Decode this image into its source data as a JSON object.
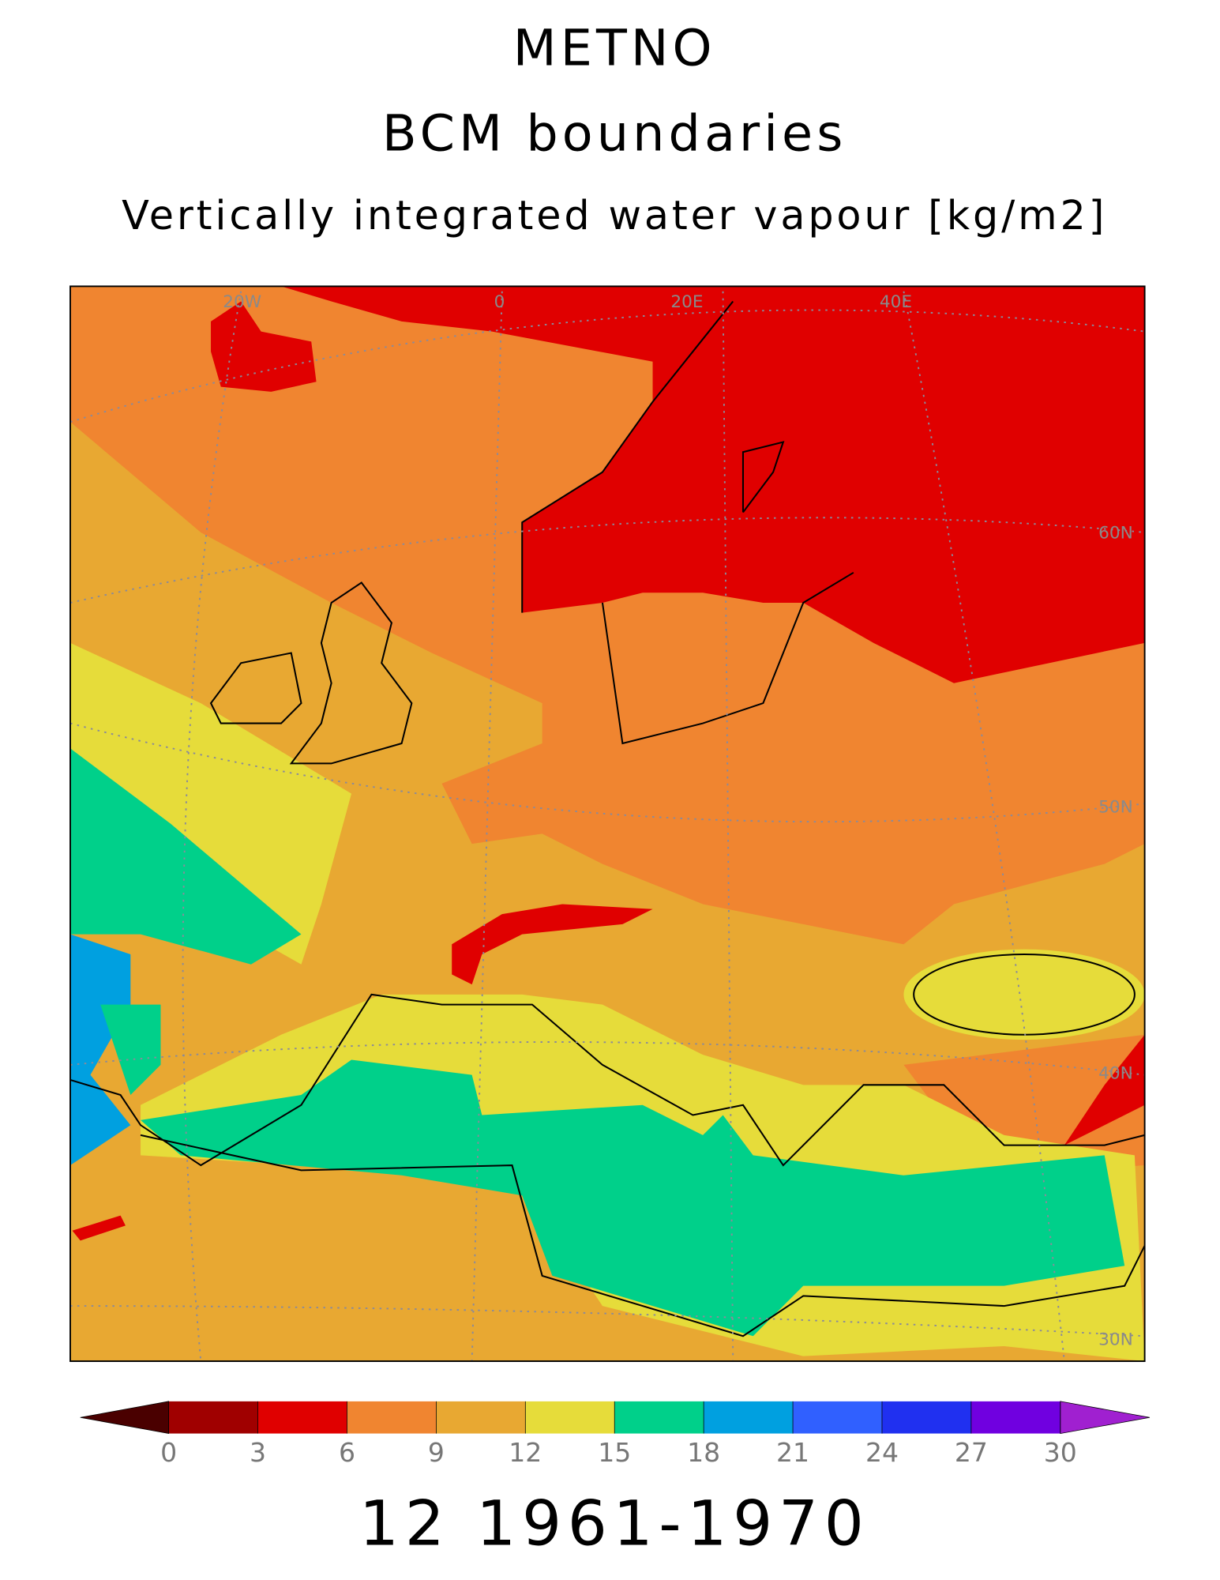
{
  "title": [
    "METNO",
    "BCM boundaries",
    "Vertically integrated water vapour [kg/m2]"
  ],
  "map": {
    "lon_labels": [
      "20W",
      "0",
      "20E",
      "40E"
    ],
    "lat_labels": [
      "60N",
      "50N",
      "40N",
      "30N"
    ]
  },
  "colorbar": {
    "ticks": [
      0,
      3,
      6,
      9,
      12,
      15,
      18,
      21,
      24,
      27,
      30
    ],
    "colors": [
      "#4a0000",
      "#a00000",
      "#e00000",
      "#f08530",
      "#e8a832",
      "#e6dc3a",
      "#00d08a",
      "#00a0e0",
      "#3060ff",
      "#2030f0",
      "#7000e0",
      "#a020d0"
    ]
  },
  "footer": "12 1961-1970"
}
